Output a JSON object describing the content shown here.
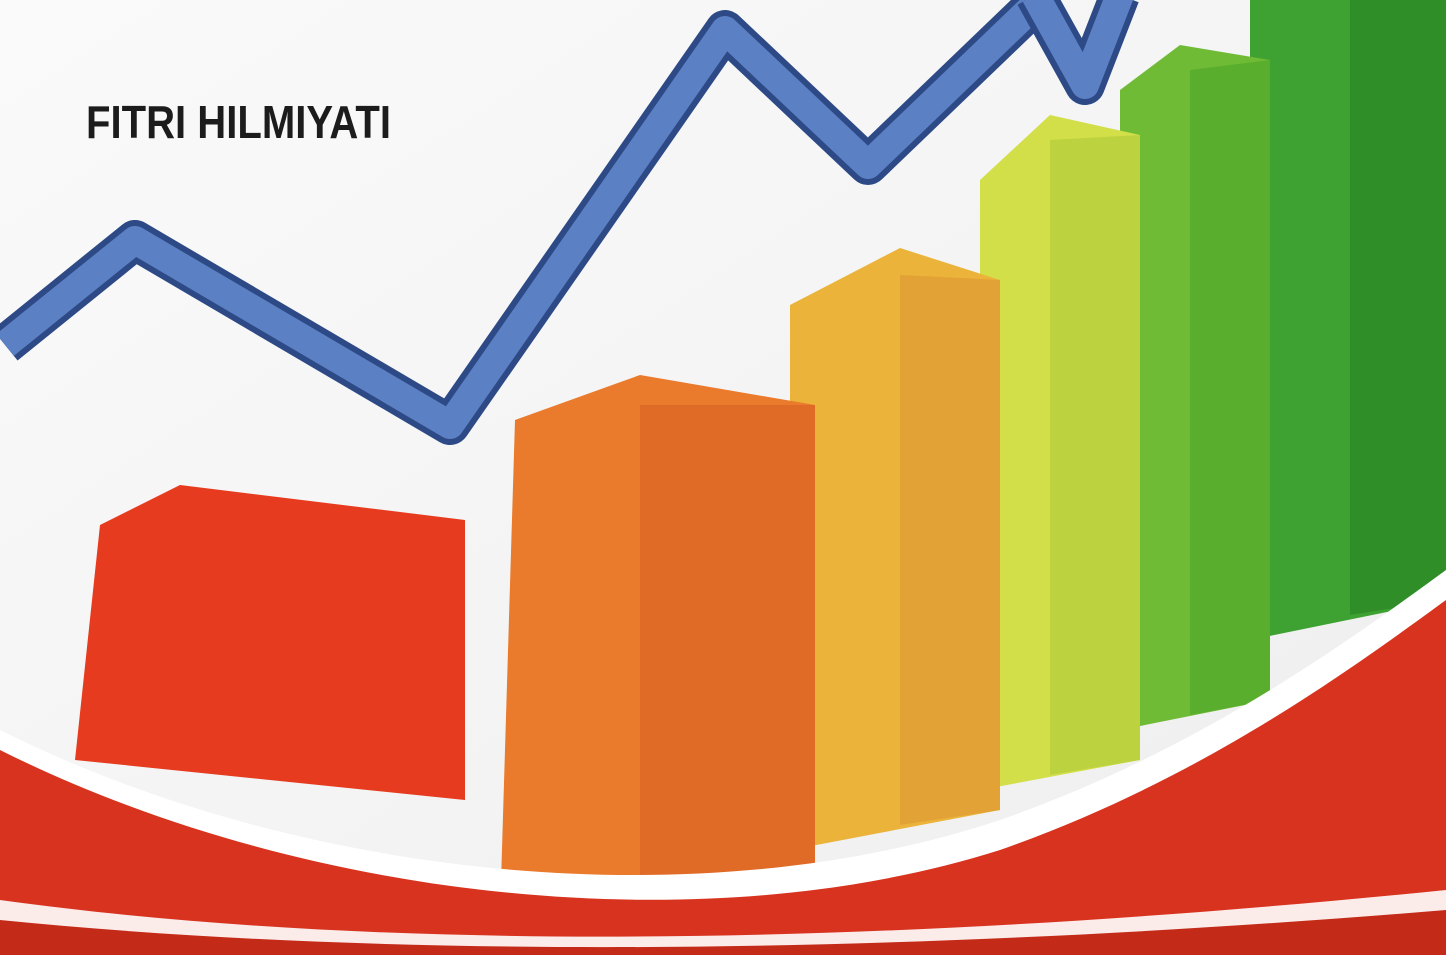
{
  "author": "FITRI HILMIYATI"
}
